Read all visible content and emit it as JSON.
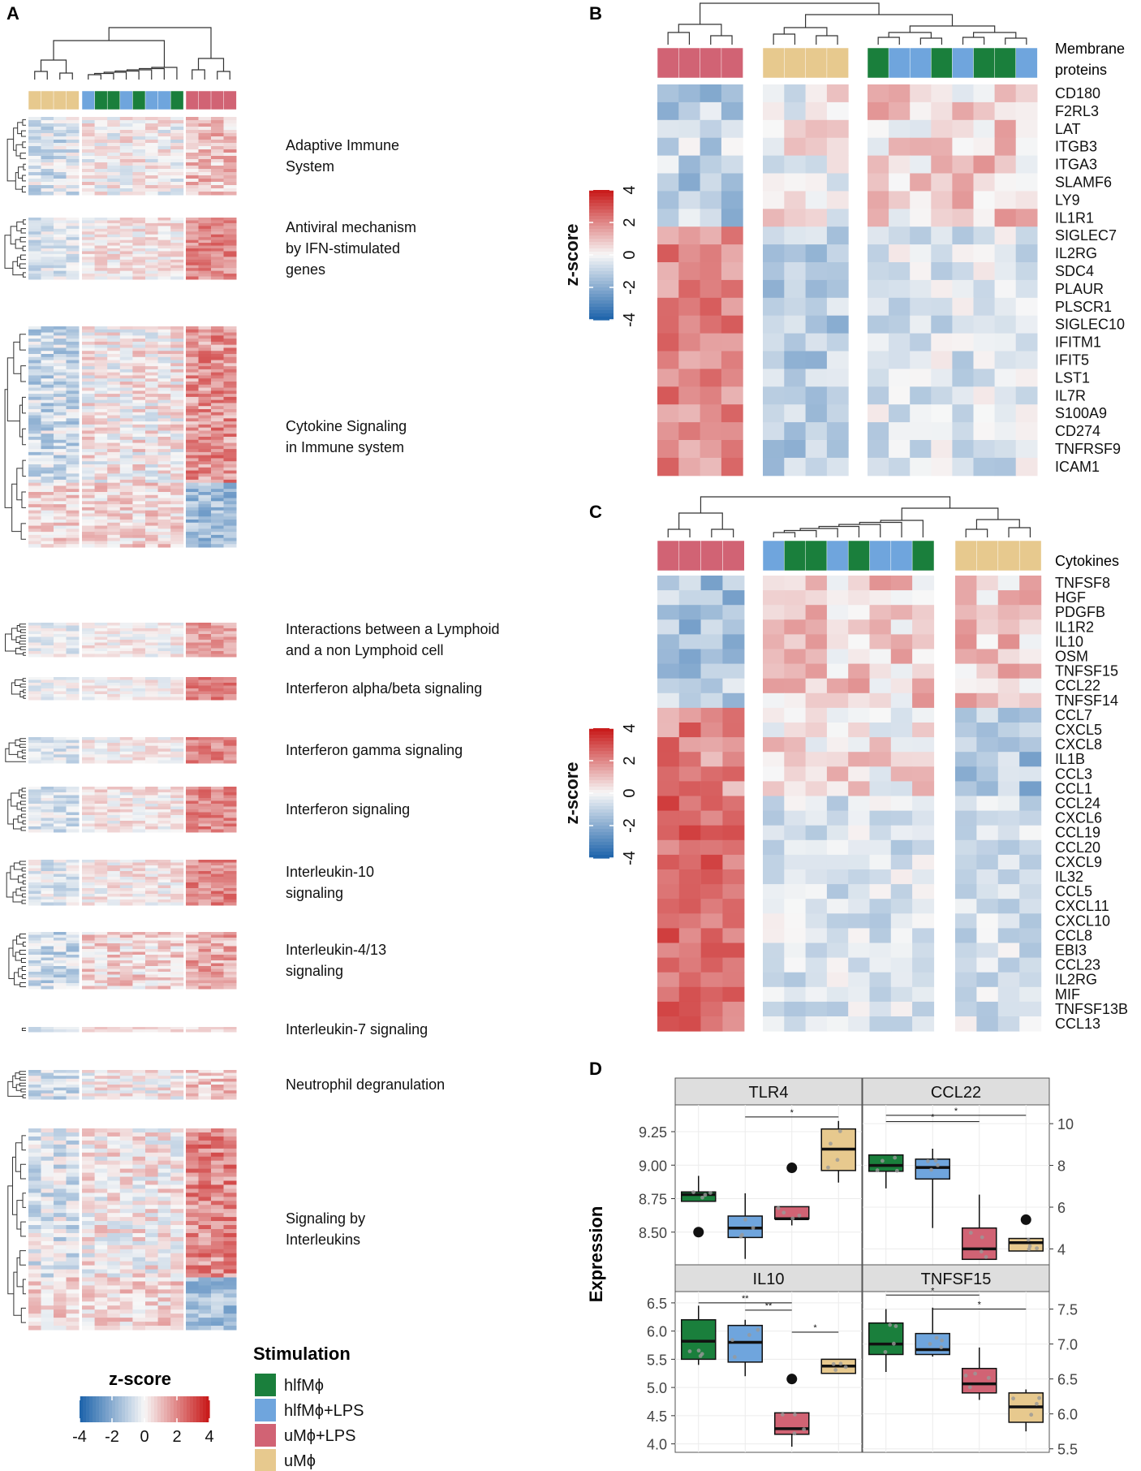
{
  "colors": {
    "hlfm": "#1a7f3c",
    "hlfm_lps": "#6fa5dd",
    "um_lps": "#d16374",
    "um": "#e7c98e",
    "strip_bg": "#dedede",
    "grid": "#ececec"
  },
  "colorscale": [
    "#2166ac",
    "#f7f7f7",
    "#c91c1c"
  ],
  "panel_labels": {
    "a": "A",
    "b": "B",
    "c": "C",
    "d": "D"
  },
  "legend": {
    "zscore_title": "z-score",
    "zscore_ticks": [
      "-4",
      "-2",
      "0",
      "2",
      "4"
    ],
    "stimulation_title": "Stimulation",
    "stimulation_items": [
      {
        "label": "hlfMϕ",
        "key": "hlfm"
      },
      {
        "label": "hlfMϕ+LPS",
        "key": "hlfm_lps"
      },
      {
        "label": "uMϕ+LPS",
        "key": "um_lps"
      },
      {
        "label": "uMϕ",
        "key": "um"
      }
    ]
  },
  "panel_a": {
    "column_annotation": [
      "um",
      "um",
      "um",
      "um",
      "hlfm_lps",
      "hlfm",
      "hlfm",
      "hlfm_lps",
      "hlfm",
      "hlfm_lps",
      "hlfm_lps",
      "hlfm",
      "um_lps",
      "um_lps",
      "um_lps",
      "um_lps"
    ],
    "pathways": [
      {
        "label": "Adaptive Immune System",
        "lines": [
          "Adaptive Immune",
          "System"
        ],
        "rows": 24
      },
      {
        "label": "Antiviral mechanism by IFN-stimulated genes",
        "lines": [
          "Antiviral mechanism",
          "by IFN-stimulated",
          "genes"
        ],
        "rows": 22
      },
      {
        "label": "Cytokine Signaling in Immune system",
        "lines": [
          "Cytokine Signaling",
          "in Immune system"
        ],
        "rows": 72
      },
      {
        "label": "Interactions between a Lymphoid and a non Lymphoid cell",
        "lines": [
          "Interactions between a Lymphoid",
          "and a non Lymphoid cell"
        ],
        "rows": 12
      },
      {
        "label": "Interferon alpha/beta signaling",
        "lines": [
          "Interferon alpha/beta signaling"
        ],
        "rows": 8
      },
      {
        "label": "Interferon gamma signaling",
        "lines": [
          "Interferon gamma signaling"
        ],
        "rows": 9
      },
      {
        "label": "Interferon signaling",
        "lines": [
          "Interferon signaling"
        ],
        "rows": 16
      },
      {
        "label": "Interleukin-10 signaling",
        "lines": [
          "Interleukin-10",
          "signaling"
        ],
        "rows": 16
      },
      {
        "label": "Interleukin-4/13 signaling",
        "lines": [
          "Interleukin-4/13",
          "signaling"
        ],
        "rows": 20
      },
      {
        "label": "Interleukin-7 signaling",
        "lines": [
          "Interleukin-7 signaling"
        ],
        "rows": 2
      },
      {
        "label": "Neutrophil  degranulation",
        "lines": [
          "Neutrophil  degranulation"
        ],
        "rows": 10
      },
      {
        "label": "Signaling by Interleukins",
        "lines": [
          "Signaling by",
          "Interleukins"
        ],
        "rows": 50
      }
    ]
  },
  "panel_b": {
    "title": "Membrane proteins",
    "title_lines": [
      "Membrane",
      "proteins"
    ],
    "column_annotation": [
      "um_lps",
      "um_lps",
      "um_lps",
      "um_lps",
      "um",
      "um",
      "um",
      "um",
      "hlfm",
      "hlfm_lps",
      "hlfm_lps",
      "hlfm",
      "hlfm_lps",
      "hlfm",
      "hlfm",
      "hlfm_lps"
    ],
    "genes": [
      "CD180",
      "F2RL3",
      "LAT",
      "ITGB3",
      "ITGA3",
      "SLAMF6",
      "LY9",
      "IL1R1",
      "SIGLEC7",
      "IL2RG",
      "SDC4",
      "PLAUR",
      "PLSCR1",
      "SIGLEC10",
      "IFITM1",
      "IFIT5",
      "LST1",
      "IL7R",
      "S100A9",
      "CD274",
      "TNFRSF9",
      "ICAM1"
    ]
  },
  "panel_c": {
    "title": "Cytokines",
    "column_annotation": [
      "um_lps",
      "um_lps",
      "um_lps",
      "um_lps",
      "hlfm_lps",
      "hlfm",
      "hlfm",
      "hlfm_lps",
      "hlfm",
      "hlfm_lps",
      "hlfm_lps",
      "hlfm",
      "um",
      "um",
      "um",
      "um"
    ],
    "genes": [
      "TNFSF8",
      "HGF",
      "PDGFB",
      "IL1R2",
      "IL10",
      "OSM",
      "TNFSF15",
      "CCL22",
      "TNFSF14",
      "CCL7",
      "CXCL5",
      "CXCL8",
      "IL1B",
      "CCL3",
      "CCL1",
      "CCL24",
      "CXCL6",
      "CCL19",
      "CCL20",
      "CXCL9",
      "IL32",
      "CCL5",
      "CXCL11",
      "CXCL10",
      "CCL8",
      "EBI3",
      "CCL23",
      "IL2RG",
      "MIF",
      "TNFSF13B",
      "CCL13"
    ]
  },
  "chart_data": {
    "type": "box",
    "ylabel": "Expression",
    "group_order": [
      "hlfMϕ",
      "hlfMϕ+LPS",
      "uMϕ+LPS",
      "uMϕ"
    ],
    "facets": [
      {
        "title": "TLR4",
        "axis_side": "left",
        "ylim": [
          8.25,
          9.45
        ],
        "ticks": [
          "8.50",
          "8.75",
          "9.00",
          "9.25"
        ],
        "tick_values": [
          8.5,
          8.75,
          9.0,
          9.25
        ],
        "boxes": [
          {
            "group": "hlfMϕ",
            "min": 8.73,
            "q1": 8.73,
            "median": 8.78,
            "q3": 8.8,
            "max": 8.92,
            "outliers": [
              8.5
            ]
          },
          {
            "group": "hlfMϕ+LPS",
            "min": 8.3,
            "q1": 8.46,
            "median": 8.53,
            "q3": 8.62,
            "max": 8.79,
            "outliers": []
          },
          {
            "group": "uMϕ+LPS",
            "min": 8.55,
            "q1": 8.6,
            "median": 8.6,
            "q3": 8.69,
            "max": 8.69,
            "outliers": [
              8.98
            ]
          },
          {
            "group": "uMϕ",
            "min": 8.87,
            "q1": 8.96,
            "median": 9.12,
            "q3": 9.27,
            "max": 9.33,
            "outliers": []
          }
        ],
        "significance": [
          {
            "from": 1,
            "to": 3,
            "y": 9.36,
            "label": "*"
          }
        ]
      },
      {
        "title": "CCL22",
        "axis_side": "right",
        "ylim": [
          3.2,
          10.9
        ],
        "ticks": [
          "4",
          "6",
          "8",
          "10"
        ],
        "tick_values": [
          4,
          6,
          8,
          10
        ],
        "boxes": [
          {
            "group": "hlfMϕ",
            "min": 6.9,
            "q1": 7.72,
            "median": 8.0,
            "q3": 8.5,
            "max": 8.5,
            "outliers": []
          },
          {
            "group": "hlfMϕ+LPS",
            "min": 5.0,
            "q1": 7.35,
            "median": 7.9,
            "q3": 8.3,
            "max": 8.8,
            "outliers": []
          },
          {
            "group": "uMϕ+LPS",
            "min": 3.5,
            "q1": 3.5,
            "median": 4.0,
            "q3": 5.0,
            "max": 6.6,
            "outliers": []
          },
          {
            "group": "uMϕ",
            "min": 3.9,
            "q1": 3.9,
            "median": 4.3,
            "q3": 4.5,
            "max": 4.5,
            "outliers": [
              5.4
            ]
          }
        ],
        "significance": [
          {
            "from": 0,
            "to": 3,
            "y": 10.4,
            "label": "*"
          },
          {
            "from": 0,
            "to": 2,
            "y": 10.1,
            "label": "*"
          }
        ]
      },
      {
        "title": "IL10",
        "axis_side": "left",
        "ylim": [
          3.85,
          6.7
        ],
        "ticks": [
          "4.0",
          "4.5",
          "5.0",
          "5.5",
          "6.0",
          "6.5"
        ],
        "tick_values": [
          4.0,
          4.5,
          5.0,
          5.5,
          6.0,
          6.5
        ],
        "boxes": [
          {
            "group": "hlfMϕ",
            "min": 5.4,
            "q1": 5.5,
            "median": 5.82,
            "q3": 6.2,
            "max": 6.45,
            "outliers": []
          },
          {
            "group": "hlfMϕ+LPS",
            "min": 5.2,
            "q1": 5.45,
            "median": 5.8,
            "q3": 6.1,
            "max": 6.2,
            "outliers": []
          },
          {
            "group": "uMϕ+LPS",
            "min": 3.95,
            "q1": 4.17,
            "median": 4.27,
            "q3": 4.55,
            "max": 4.55,
            "outliers": [
              5.15
            ]
          },
          {
            "group": "uMϕ",
            "min": 5.25,
            "q1": 5.25,
            "median": 5.38,
            "q3": 5.5,
            "max": 5.5,
            "outliers": []
          }
        ],
        "significance": [
          {
            "from": 0,
            "to": 2,
            "y": 6.5,
            "label": "**"
          },
          {
            "from": 1,
            "to": 2,
            "y": 6.37,
            "label": "**"
          },
          {
            "from": 2,
            "to": 3,
            "y": 5.98,
            "label": "*"
          }
        ]
      },
      {
        "title": "TNFSF15",
        "axis_side": "right",
        "ylim": [
          5.45,
          7.75
        ],
        "ticks": [
          "5.5",
          "6.0",
          "6.5",
          "7.0",
          "7.5"
        ],
        "tick_values": [
          5.5,
          6.0,
          6.5,
          7.0,
          7.5
        ],
        "boxes": [
          {
            "group": "hlfMϕ",
            "min": 6.6,
            "q1": 6.85,
            "median": 7.0,
            "q3": 7.3,
            "max": 7.5,
            "outliers": []
          },
          {
            "group": "hlfMϕ+LPS",
            "min": 6.82,
            "q1": 6.85,
            "median": 6.92,
            "q3": 7.15,
            "max": 7.52,
            "outliers": []
          },
          {
            "group": "uMϕ+LPS",
            "min": 6.2,
            "q1": 6.3,
            "median": 6.43,
            "q3": 6.65,
            "max": 6.95,
            "outliers": []
          },
          {
            "group": "uMϕ",
            "min": 5.75,
            "q1": 5.88,
            "median": 6.1,
            "q3": 6.3,
            "max": 6.35,
            "outliers": []
          }
        ],
        "significance": [
          {
            "from": 0,
            "to": 2,
            "y": 7.7,
            "label": "*"
          },
          {
            "from": 1,
            "to": 3,
            "y": 7.5,
            "label": "*"
          }
        ]
      }
    ]
  }
}
